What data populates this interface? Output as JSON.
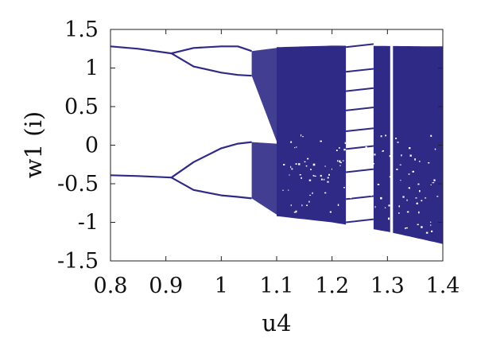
{
  "chart_data": {
    "type": "scatter",
    "title": "",
    "xlabel": "u4",
    "ylabel": "w1 (i)",
    "xlim": [
      0.8,
      1.4
    ],
    "ylim": [
      -1.5,
      1.5
    ],
    "xticks": [
      "0.8",
      "0.9",
      "1",
      "1.1",
      "1.2",
      "1.3",
      "1.4"
    ],
    "yticks": [
      "1.5",
      "1",
      "0.5",
      "0",
      "-0.5",
      "-1",
      "-1.5"
    ],
    "grid": false,
    "legend": "none",
    "point_color": "#2e2a86",
    "series": [
      {
        "kind": "bifurcation",
        "branches": [
          {
            "x": [
              0.8,
              0.85,
              0.91
            ],
            "y": [
              1.28,
              1.25,
              1.19
            ]
          },
          {
            "x": [
              0.8,
              0.85,
              0.91
            ],
            "y": [
              -0.39,
              -0.4,
              -0.42
            ]
          },
          {
            "x": [
              0.91,
              0.95,
              1.0,
              1.03,
              1.055
            ],
            "y": [
              1.19,
              1.26,
              1.28,
              1.28,
              1.22
            ]
          },
          {
            "x": [
              0.91,
              0.95,
              1.0,
              1.03,
              1.055
            ],
            "y": [
              1.19,
              1.02,
              0.94,
              0.91,
              0.9
            ]
          },
          {
            "x": [
              0.91,
              0.95,
              1.0,
              1.03,
              1.055
            ],
            "y": [
              -0.42,
              -0.22,
              -0.04,
              0.02,
              0.04
            ]
          },
          {
            "x": [
              0.91,
              0.95,
              1.0,
              1.03,
              1.055
            ],
            "y": [
              -0.42,
              -0.58,
              -0.65,
              -0.67,
              -0.69
            ]
          }
        ],
        "chaotic_region": {
          "x_start": 1.1,
          "x_end": 1.4,
          "upper_bound": [
            [
              1.1,
              1.27
            ],
            [
              1.2,
              1.29
            ],
            [
              1.4,
              1.28
            ]
          ],
          "lower_bound": [
            [
              1.1,
              -0.92
            ],
            [
              1.2,
              -1.0
            ],
            [
              1.3,
              -1.12
            ],
            [
              1.4,
              -1.28
            ]
          ],
          "periodic_windows": [
            [
              1.225,
              1.275
            ],
            [
              1.305,
              1.31
            ]
          ]
        }
      }
    ]
  }
}
